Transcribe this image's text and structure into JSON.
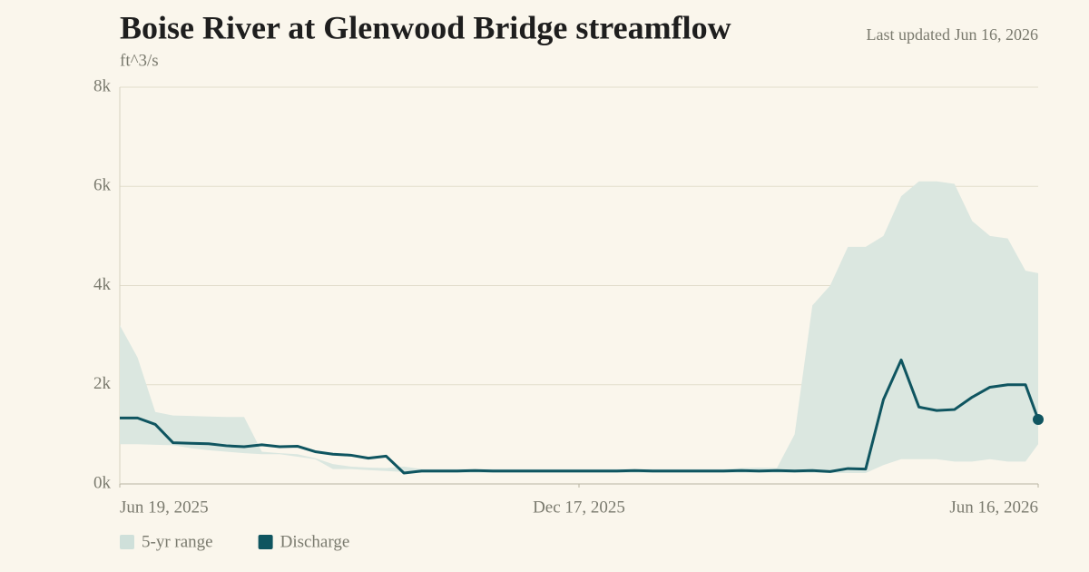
{
  "chart_data": {
    "type": "line",
    "title": "Boise River at Glenwood Bridge streamflow",
    "subtitle": "ft^3/s",
    "updated": "Last updated Jun 16, 2026",
    "x": [
      "2025-06-19",
      "2025-06-26",
      "2025-07-03",
      "2025-07-10",
      "2025-07-17",
      "2025-07-24",
      "2025-07-31",
      "2025-08-07",
      "2025-08-14",
      "2025-08-21",
      "2025-08-28",
      "2025-09-04",
      "2025-09-11",
      "2025-09-18",
      "2025-09-25",
      "2025-10-02",
      "2025-10-09",
      "2025-10-16",
      "2025-10-23",
      "2025-10-30",
      "2025-11-06",
      "2025-11-13",
      "2025-11-20",
      "2025-11-27",
      "2025-12-04",
      "2025-12-11",
      "2025-12-18",
      "2025-12-25",
      "2026-01-01",
      "2026-01-08",
      "2026-01-15",
      "2026-01-22",
      "2026-01-29",
      "2026-02-05",
      "2026-02-12",
      "2026-02-19",
      "2026-02-26",
      "2026-03-05",
      "2026-03-12",
      "2026-03-19",
      "2026-03-26",
      "2026-04-02",
      "2026-04-09",
      "2026-04-16",
      "2026-04-23",
      "2026-04-30",
      "2026-05-07",
      "2026-05-14",
      "2026-05-21",
      "2026-05-28",
      "2026-06-04",
      "2026-06-11",
      "2026-06-16"
    ],
    "series": [
      {
        "name": "5-yr range",
        "color": "#dbe7e0",
        "high": [
          3200,
          2550,
          1450,
          1380,
          1370,
          1360,
          1350,
          1350,
          650,
          620,
          600,
          520,
          400,
          350,
          330,
          320,
          350,
          300,
          300,
          300,
          300,
          300,
          300,
          300,
          300,
          300,
          300,
          300,
          300,
          300,
          300,
          300,
          300,
          300,
          300,
          320,
          330,
          320,
          1000,
          3600,
          4000,
          4780,
          4780,
          5000,
          5800,
          6100,
          6100,
          6050,
          5300,
          5000,
          4950,
          4300,
          4250
        ],
        "low": [
          800,
          800,
          790,
          780,
          720,
          680,
          650,
          620,
          600,
          600,
          550,
          500,
          300,
          300,
          280,
          260,
          240,
          220,
          220,
          220,
          220,
          220,
          220,
          220,
          220,
          220,
          220,
          220,
          220,
          220,
          220,
          220,
          220,
          220,
          220,
          220,
          220,
          220,
          220,
          220,
          220,
          220,
          220,
          380,
          500,
          500,
          500,
          450,
          450,
          500,
          450,
          450,
          800
        ]
      },
      {
        "name": "Discharge",
        "color": "#0f5560",
        "values": [
          1330,
          1330,
          1200,
          830,
          820,
          810,
          770,
          750,
          790,
          750,
          760,
          650,
          600,
          580,
          520,
          560,
          220,
          260,
          260,
          260,
          270,
          260,
          260,
          260,
          260,
          260,
          260,
          260,
          260,
          270,
          260,
          260,
          260,
          260,
          260,
          270,
          260,
          270,
          260,
          270,
          250,
          310,
          300,
          1700,
          2500,
          1550,
          1480,
          1500,
          1750,
          1950,
          2000,
          2000,
          1300
        ]
      }
    ],
    "xlim": [
      "2025-06-19",
      "2026-06-16"
    ],
    "xticks": [
      {
        "value": "2025-06-19",
        "label": "Jun 19, 2025"
      },
      {
        "value": "2025-12-17",
        "label": "Dec 17, 2025"
      },
      {
        "value": "2026-06-16",
        "label": "Jun 16, 2026"
      }
    ],
    "ylim": [
      0,
      8000
    ],
    "yticks": [
      {
        "value": 0,
        "label": "0k"
      },
      {
        "value": 2000,
        "label": "2k"
      },
      {
        "value": 4000,
        "label": "4k"
      },
      {
        "value": 6000,
        "label": "6k"
      },
      {
        "value": 8000,
        "label": "8k"
      }
    ],
    "grid": true
  }
}
